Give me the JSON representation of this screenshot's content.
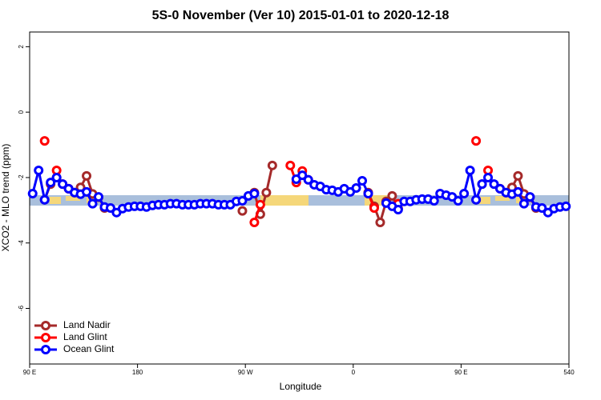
{
  "chart_data": {
    "type": "line",
    "title": "5S-0 November (Ver 10)   2015-01-01 to 2020-12-18",
    "x_label": "Longitude",
    "y_label": "XCO2 - MLO trend (ppm)",
    "xlim": [
      90,
      540
    ],
    "ylim": [
      -7.7,
      2.45
    ],
    "xticks": [
      {
        "value": 90,
        "label": "90 E"
      },
      180,
      {
        "value": 270,
        "label": "90 W"
      },
      {
        "value": 360,
        "label": "0"
      },
      {
        "value": 450,
        "label": "90 E"
      },
      540
    ],
    "yticks": [
      -6,
      -4,
      -2,
      0,
      2
    ],
    "grid": false,
    "legend": "bottom-left",
    "x": [
      92.5,
      97.5,
      102.5,
      107.5,
      112.5,
      117.5,
      122.5,
      127.5,
      132.5,
      137.5,
      142.5,
      147.5,
      152.5,
      157.5,
      162.5,
      167.5,
      172.5,
      177.5,
      182.5,
      187.5,
      192.5,
      197.5,
      202.5,
      207.5,
      212.5,
      217.5,
      222.5,
      227.5,
      232.5,
      237.5,
      242.5,
      247.5,
      252.5,
      257.5,
      262.5,
      267.5,
      272.5,
      277.5,
      282.5,
      287.5,
      292.5,
      297.5,
      302.5,
      307.5,
      312.5,
      317.5,
      322.5,
      327.5,
      332.5,
      337.5,
      342.5,
      347.5,
      352.5,
      357.5,
      362.5,
      367.5,
      372.5,
      377.5,
      382.5,
      387.5,
      392.5,
      397.5,
      402.5,
      407.5,
      412.5,
      417.5,
      422.5,
      427.5,
      432.5,
      437.5,
      442.5,
      447.5,
      452.5,
      457.5,
      462.5,
      467.5,
      472.5,
      477.5,
      482.5,
      487.5,
      492.5,
      497.5,
      502.5,
      507.5,
      512.5,
      517.5,
      522.5,
      527.5,
      532.5,
      537.5
    ],
    "series": [
      {
        "name": "Land Nadir",
        "color": "#a52a2a",
        "values": [
          null,
          null,
          -2.68,
          -2.2,
          -2.0,
          -2.2,
          -2.34,
          -2.46,
          -2.3,
          -1.95,
          -2.5,
          -2.6,
          -2.93,
          null,
          null,
          null,
          null,
          null,
          null,
          null,
          null,
          null,
          null,
          null,
          null,
          null,
          null,
          null,
          null,
          null,
          null,
          null,
          null,
          null,
          null,
          -3.02,
          null,
          -2.46,
          -3.12,
          -2.46,
          -1.63,
          null,
          null,
          null,
          null,
          null,
          null,
          null,
          null,
          null,
          null,
          null,
          null,
          null,
          null,
          null,
          -2.46,
          -2.88,
          -3.37,
          -2.73,
          -2.56,
          -2.95,
          null,
          null,
          null,
          null,
          null,
          null,
          null,
          null,
          null,
          null,
          null,
          null,
          -2.68,
          -2.2,
          null,
          null,
          null,
          -2.46,
          -2.3,
          -1.95,
          -2.5,
          -2.6,
          -2.93,
          null,
          null,
          null,
          null,
          null
        ]
      },
      {
        "name": "Land Glint",
        "color": "#ff0000",
        "values": [
          null,
          null,
          -0.88,
          null,
          -1.78,
          null,
          -2.34,
          null,
          null,
          null,
          null,
          null,
          null,
          null,
          null,
          null,
          null,
          null,
          null,
          null,
          null,
          null,
          null,
          null,
          null,
          null,
          null,
          null,
          null,
          null,
          null,
          null,
          null,
          null,
          null,
          null,
          null,
          -3.37,
          -2.83,
          null,
          null,
          null,
          null,
          -1.63,
          -2.15,
          -1.8,
          -2.07,
          null,
          null,
          null,
          null,
          null,
          null,
          null,
          null,
          null,
          -2.49,
          -2.93,
          null,
          null,
          null,
          -2.8,
          null,
          null,
          null,
          null,
          null,
          null,
          null,
          null,
          null,
          null,
          null,
          null,
          -0.88,
          null,
          -1.78,
          null,
          -2.34,
          null,
          null,
          null,
          null,
          null,
          null,
          null,
          null,
          null,
          null,
          null
        ]
      },
      {
        "name": "Ocean Glint",
        "color": "#0000ff",
        "values": [
          -2.49,
          -1.78,
          -2.68,
          -2.15,
          -2.0,
          -2.2,
          -2.34,
          -2.46,
          -2.51,
          -2.44,
          -2.8,
          -2.59,
          -2.9,
          -2.93,
          -3.07,
          -2.95,
          -2.9,
          -2.88,
          -2.88,
          -2.9,
          -2.85,
          -2.83,
          -2.83,
          -2.8,
          -2.8,
          -2.83,
          -2.83,
          -2.83,
          -2.8,
          -2.8,
          -2.8,
          -2.83,
          -2.83,
          -2.83,
          -2.73,
          -2.71,
          -2.56,
          -2.49,
          null,
          null,
          null,
          null,
          null,
          null,
          -2.05,
          -1.93,
          -2.07,
          -2.22,
          -2.27,
          -2.37,
          -2.39,
          -2.44,
          -2.34,
          -2.44,
          -2.32,
          -2.1,
          -2.49,
          null,
          null,
          -2.78,
          -2.88,
          -2.98,
          -2.73,
          -2.73,
          -2.68,
          -2.66,
          -2.66,
          -2.71,
          -2.49,
          -2.54,
          -2.59,
          -2.71,
          -2.49,
          -1.78,
          -2.68,
          -2.2,
          -2.0,
          -2.2,
          -2.34,
          -2.46,
          -2.51,
          -2.44,
          -2.8,
          -2.59,
          -2.9,
          -2.93,
          -3.07,
          -2.95,
          -2.9,
          -2.88
        ]
      }
    ]
  }
}
